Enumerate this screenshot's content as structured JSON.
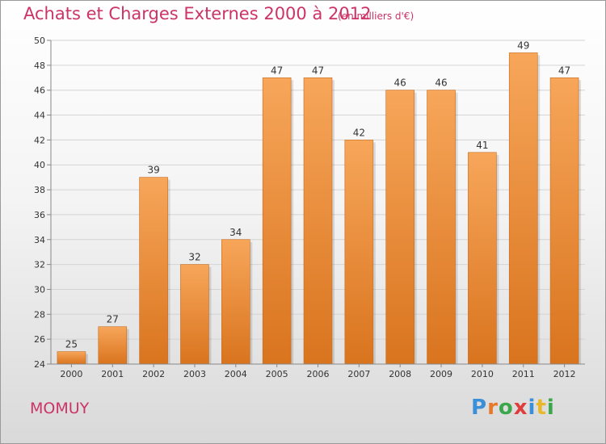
{
  "title": "Achats et Charges Externes 2000 à 2012",
  "unit": "(en milliers d'€)",
  "city": "MOMUY",
  "logo": {
    "text": "Proxiti",
    "letters": [
      {
        "ch": "P",
        "color": "#3a8fd8"
      },
      {
        "ch": "r",
        "color": "#e8792a"
      },
      {
        "ch": "o",
        "color": "#3aa84a"
      },
      {
        "ch": "x",
        "color": "#e03c3c"
      },
      {
        "ch": "i",
        "color": "#3a8fd8"
      },
      {
        "ch": "t",
        "color": "#e8b82a"
      },
      {
        "ch": "i",
        "color": "#3aa84a"
      }
    ]
  },
  "colors": {
    "bar_top": "#f7a65a",
    "bar_bottom": "#d9741e",
    "bar_edge": "#c86a1c",
    "accent": "#cc3366"
  },
  "chart_data": {
    "type": "bar",
    "title": "Achats et Charges Externes 2000 à 2012",
    "subtitle": "(en milliers d'€)",
    "categories": [
      "2000",
      "2001",
      "2002",
      "2003",
      "2004",
      "2005",
      "2006",
      "2007",
      "2008",
      "2009",
      "2010",
      "2011",
      "2012"
    ],
    "values": [
      25,
      27,
      39,
      32,
      34,
      47,
      47,
      42,
      46,
      46,
      41,
      49,
      47
    ],
    "ylim": [
      24,
      50
    ],
    "yticks": [
      24,
      26,
      28,
      30,
      32,
      34,
      36,
      38,
      40,
      42,
      44,
      46,
      48,
      50
    ],
    "grid": true,
    "xlabel": "",
    "ylabel": ""
  }
}
